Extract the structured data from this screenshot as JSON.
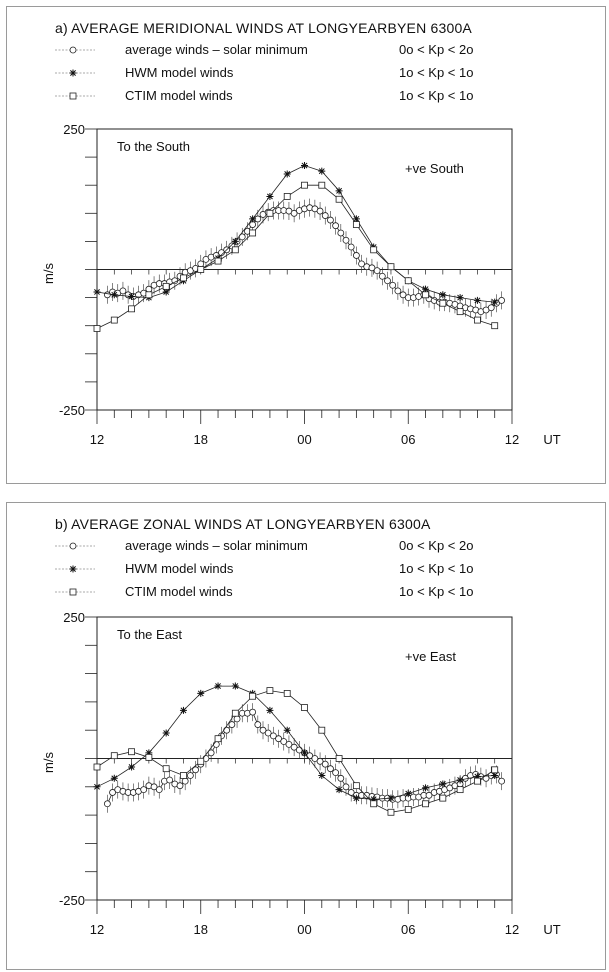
{
  "chart_data": [
    {
      "id": "a",
      "type": "line",
      "title": "a) AVERAGE MERIDIONAL WINDS AT LONGYEARBYEN 6300A",
      "ylabel": "m/s",
      "xlabel": "UT",
      "x_unit": "hours since 12 UT",
      "xlim": [
        0,
        24
      ],
      "ylim": [
        -250,
        250
      ],
      "y_tick_labels": [
        "250",
        "-250"
      ],
      "x_tick_labels": [
        "12",
        "18",
        "00",
        "06",
        "12"
      ],
      "x_unit_label": "UT",
      "annotations": {
        "top_left": "To the South",
        "top_right": "+ve South"
      },
      "legend": [
        {
          "marker": "circle",
          "label": "average winds – solar minimum",
          "kp": "0o < Kp <  2o"
        },
        {
          "marker": "star",
          "label": "HWM model winds",
          "kp": "1o < Kp <  1o"
        },
        {
          "marker": "square",
          "label": "CTIM model winds",
          "kp": "1o < Kp <  1o"
        }
      ],
      "series": [
        {
          "marker": "circle",
          "x": [
            0.6,
            0.9,
            1.2,
            1.5,
            1.8,
            2.1,
            2.4,
            2.7,
            3.0,
            3.3,
            3.6,
            3.9,
            4.2,
            4.5,
            4.8,
            5.1,
            5.4,
            5.7,
            6.0,
            6.3,
            6.6,
            6.9,
            7.2,
            7.5,
            7.8,
            8.1,
            8.4,
            8.7,
            9.0,
            9.3,
            9.6,
            9.9,
            10.2,
            10.5,
            10.8,
            11.1,
            11.4,
            11.7,
            12.0,
            12.3,
            12.6,
            12.9,
            13.2,
            13.5,
            13.8,
            14.1,
            14.4,
            14.7,
            15.0,
            15.3,
            15.6,
            15.9,
            16.2,
            16.5,
            16.8,
            17.1,
            17.4,
            17.7,
            18.0,
            18.3,
            18.6,
            18.9,
            19.2,
            19.5,
            19.8,
            20.1,
            20.4,
            20.7,
            21.0,
            21.3,
            21.6,
            21.9,
            22.2,
            22.5,
            22.8,
            23.1,
            23.4
          ],
          "y": [
            -45,
            -40,
            -42,
            -38,
            -45,
            -48,
            -45,
            -42,
            -35,
            -28,
            -25,
            -25,
            -22,
            -20,
            -12,
            -5,
            -2,
            2,
            10,
            18,
            22,
            25,
            30,
            35,
            42,
            50,
            58,
            68,
            80,
            90,
            98,
            102,
            105,
            105,
            105,
            104,
            100,
            105,
            108,
            110,
            108,
            104,
            96,
            88,
            78,
            65,
            52,
            40,
            25,
            10,
            5,
            3,
            -2,
            -12,
            -20,
            -28,
            -38,
            -45,
            -50,
            -50,
            -48,
            -45,
            -52,
            -55,
            -58,
            -58,
            -60,
            -62,
            -65,
            -68,
            -70,
            -72,
            -75,
            -72,
            -68,
            -60,
            -55
          ]
        },
        {
          "marker": "star",
          "x": [
            0,
            1,
            2,
            3,
            4,
            5,
            6,
            7,
            8,
            9,
            10,
            11,
            12,
            13,
            14,
            15,
            16,
            17,
            18,
            19,
            20,
            21,
            22,
            23
          ],
          "y": [
            -40,
            -45,
            -48,
            -50,
            -40,
            -20,
            0,
            20,
            50,
            90,
            130,
            170,
            185,
            175,
            140,
            90,
            40,
            5,
            -20,
            -35,
            -45,
            -50,
            -55,
            -58
          ]
        },
        {
          "marker": "square",
          "x": [
            0,
            1,
            2,
            3,
            4,
            5,
            6,
            7,
            8,
            9,
            10,
            11,
            12,
            13,
            14,
            15,
            16,
            17,
            18,
            19,
            20,
            21,
            22,
            23
          ],
          "y": [
            -105,
            -90,
            -70,
            -45,
            -30,
            -15,
            0,
            15,
            35,
            65,
            100,
            130,
            150,
            150,
            125,
            80,
            35,
            5,
            -20,
            -45,
            -60,
            -75,
            -90,
            -100
          ]
        }
      ]
    },
    {
      "id": "b",
      "type": "line",
      "title": "b) AVERAGE ZONAL WINDS AT LONGYEARBYEN 6300A",
      "ylabel": "m/s",
      "xlabel": "UT",
      "x_unit": "hours since 12 UT",
      "xlim": [
        0,
        24
      ],
      "ylim": [
        -250,
        250
      ],
      "y_tick_labels": [
        "250",
        "-250"
      ],
      "x_tick_labels": [
        "12",
        "18",
        "00",
        "06",
        "12"
      ],
      "x_unit_label": "UT",
      "annotations": {
        "top_left": "To the East",
        "top_right": "+ve East"
      },
      "legend": [
        {
          "marker": "circle",
          "label": "average winds – solar minimum",
          "kp": "0o < Kp <  2o"
        },
        {
          "marker": "star",
          "label": "HWM model winds",
          "kp": "1o < Kp <  1o"
        },
        {
          "marker": "square",
          "label": "CTIM model winds",
          "kp": "1o < Kp <  1o"
        }
      ],
      "series": [
        {
          "marker": "circle",
          "x": [
            0.6,
            0.9,
            1.2,
            1.5,
            1.8,
            2.1,
            2.4,
            2.7,
            3.0,
            3.3,
            3.6,
            3.9,
            4.2,
            4.5,
            4.8,
            5.1,
            5.4,
            5.7,
            6.0,
            6.3,
            6.6,
            6.9,
            7.2,
            7.5,
            7.8,
            8.1,
            8.4,
            8.7,
            9.0,
            9.3,
            9.6,
            9.9,
            10.2,
            10.5,
            10.8,
            11.1,
            11.4,
            11.7,
            12.0,
            12.3,
            12.6,
            12.9,
            13.2,
            13.5,
            13.8,
            14.1,
            14.4,
            14.7,
            15.0,
            15.3,
            15.6,
            15.9,
            16.2,
            16.5,
            16.8,
            17.1,
            17.4,
            17.7,
            18.0,
            18.3,
            18.6,
            18.9,
            19.2,
            19.5,
            19.8,
            20.1,
            20.4,
            20.7,
            21.0,
            21.3,
            21.6,
            21.9,
            22.2,
            22.5,
            22.8,
            23.1,
            23.4
          ],
          "y": [
            -80,
            -60,
            -55,
            -58,
            -60,
            -60,
            -58,
            -55,
            -48,
            -50,
            -55,
            -40,
            -38,
            -45,
            -48,
            -40,
            -30,
            -20,
            -10,
            0,
            10,
            25,
            40,
            50,
            60,
            70,
            80,
            80,
            82,
            60,
            50,
            45,
            40,
            35,
            30,
            25,
            20,
            15,
            10,
            5,
            0,
            -5,
            -10,
            -18,
            -25,
            -35,
            -50,
            -60,
            -65,
            -65,
            -65,
            -67,
            -68,
            -70,
            -70,
            -72,
            -72,
            -70,
            -70,
            -68,
            -68,
            -65,
            -65,
            -60,
            -58,
            -55,
            -52,
            -48,
            -45,
            -35,
            -30,
            -28,
            -32,
            -35,
            -30,
            -28,
            -40
          ]
        },
        {
          "marker": "star",
          "x": [
            0,
            1,
            2,
            3,
            4,
            5,
            6,
            7,
            8,
            9,
            10,
            11,
            12,
            13,
            14,
            15,
            16,
            17,
            18,
            19,
            20,
            21,
            22,
            23
          ],
          "y": [
            -50,
            -35,
            -15,
            10,
            45,
            85,
            115,
            128,
            128,
            115,
            85,
            50,
            10,
            -30,
            -55,
            -70,
            -72,
            -70,
            -62,
            -52,
            -45,
            -38,
            -32,
            -30
          ]
        },
        {
          "marker": "square",
          "x": [
            0,
            1,
            2,
            3,
            4,
            5,
            6,
            7,
            8,
            9,
            10,
            11,
            12,
            13,
            14,
            15,
            16,
            17,
            18,
            19,
            20,
            21,
            22,
            23
          ],
          "y": [
            -15,
            5,
            12,
            2,
            -18,
            -30,
            -5,
            35,
            80,
            110,
            120,
            115,
            90,
            50,
            0,
            -48,
            -80,
            -95,
            -90,
            -80,
            -70,
            -55,
            -40,
            -20
          ]
        }
      ]
    }
  ]
}
